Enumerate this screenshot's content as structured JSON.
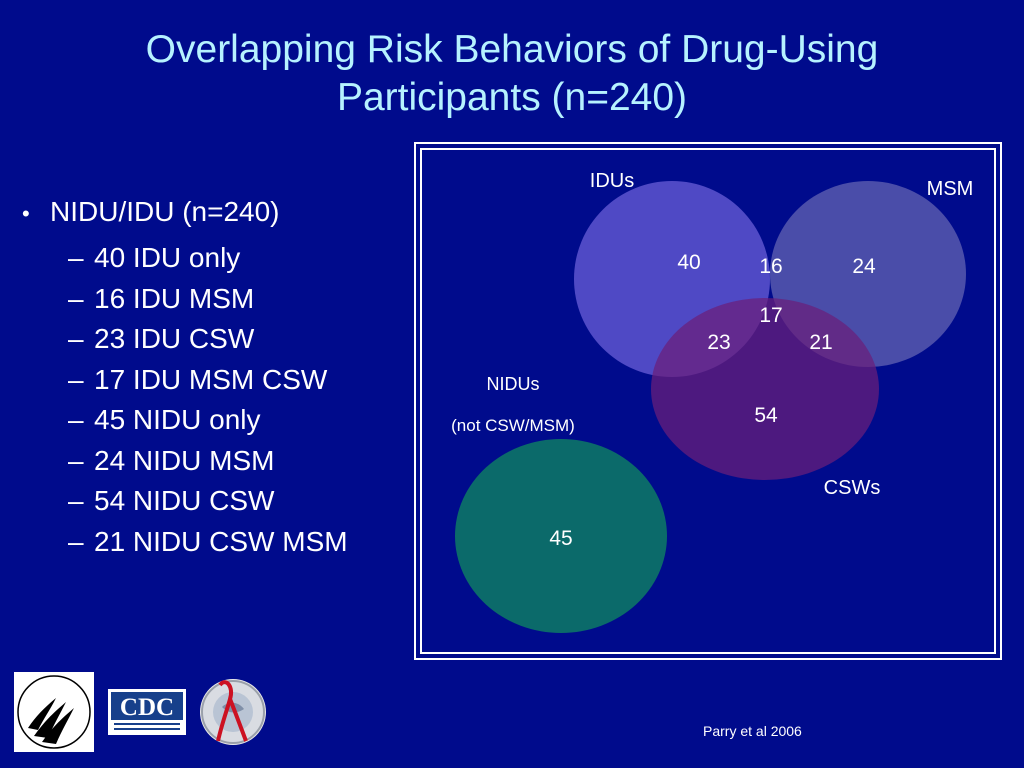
{
  "title": {
    "line1": "Overlapping Risk Behaviors of Drug-Using",
    "line2": "Participants (n=240)"
  },
  "bullets": {
    "main": "NIDU/IDU (n=240)",
    "items": [
      "40 IDU only",
      "16 IDU MSM",
      "23 IDU CSW",
      "17 IDU MSM CSW",
      "45 NIDU only",
      "24 NIDU MSM",
      "54 NIDU CSW",
      "21 NIDU CSW MSM"
    ]
  },
  "venn": {
    "labels": {
      "idus": "IDUs",
      "msm": "MSM",
      "csws": "CSWs",
      "nidus": "NIDUs",
      "nidus_sub": "(not CSW/MSM)"
    },
    "values": {
      "idu_only": "40",
      "idu_msm": "16",
      "msm_only": "24",
      "idu_msm_csw": "17",
      "idu_csw": "23",
      "msm_csw": "21",
      "csw_only": "54",
      "nidu_only": "45"
    },
    "colors": {
      "idus": "#6a5fd8",
      "msm": "#6a6ab0",
      "csws": "#6b2480",
      "nidus": "#0b6a6a",
      "background": "#000b8c",
      "title": "#b6f2ff"
    }
  },
  "footer": {
    "citation": "Parry et al 2006",
    "cdc_logo": "CDC",
    "logos": [
      "hhs-seal-icon",
      "cdc-logo",
      "aids-ribbon-seal-icon"
    ]
  }
}
